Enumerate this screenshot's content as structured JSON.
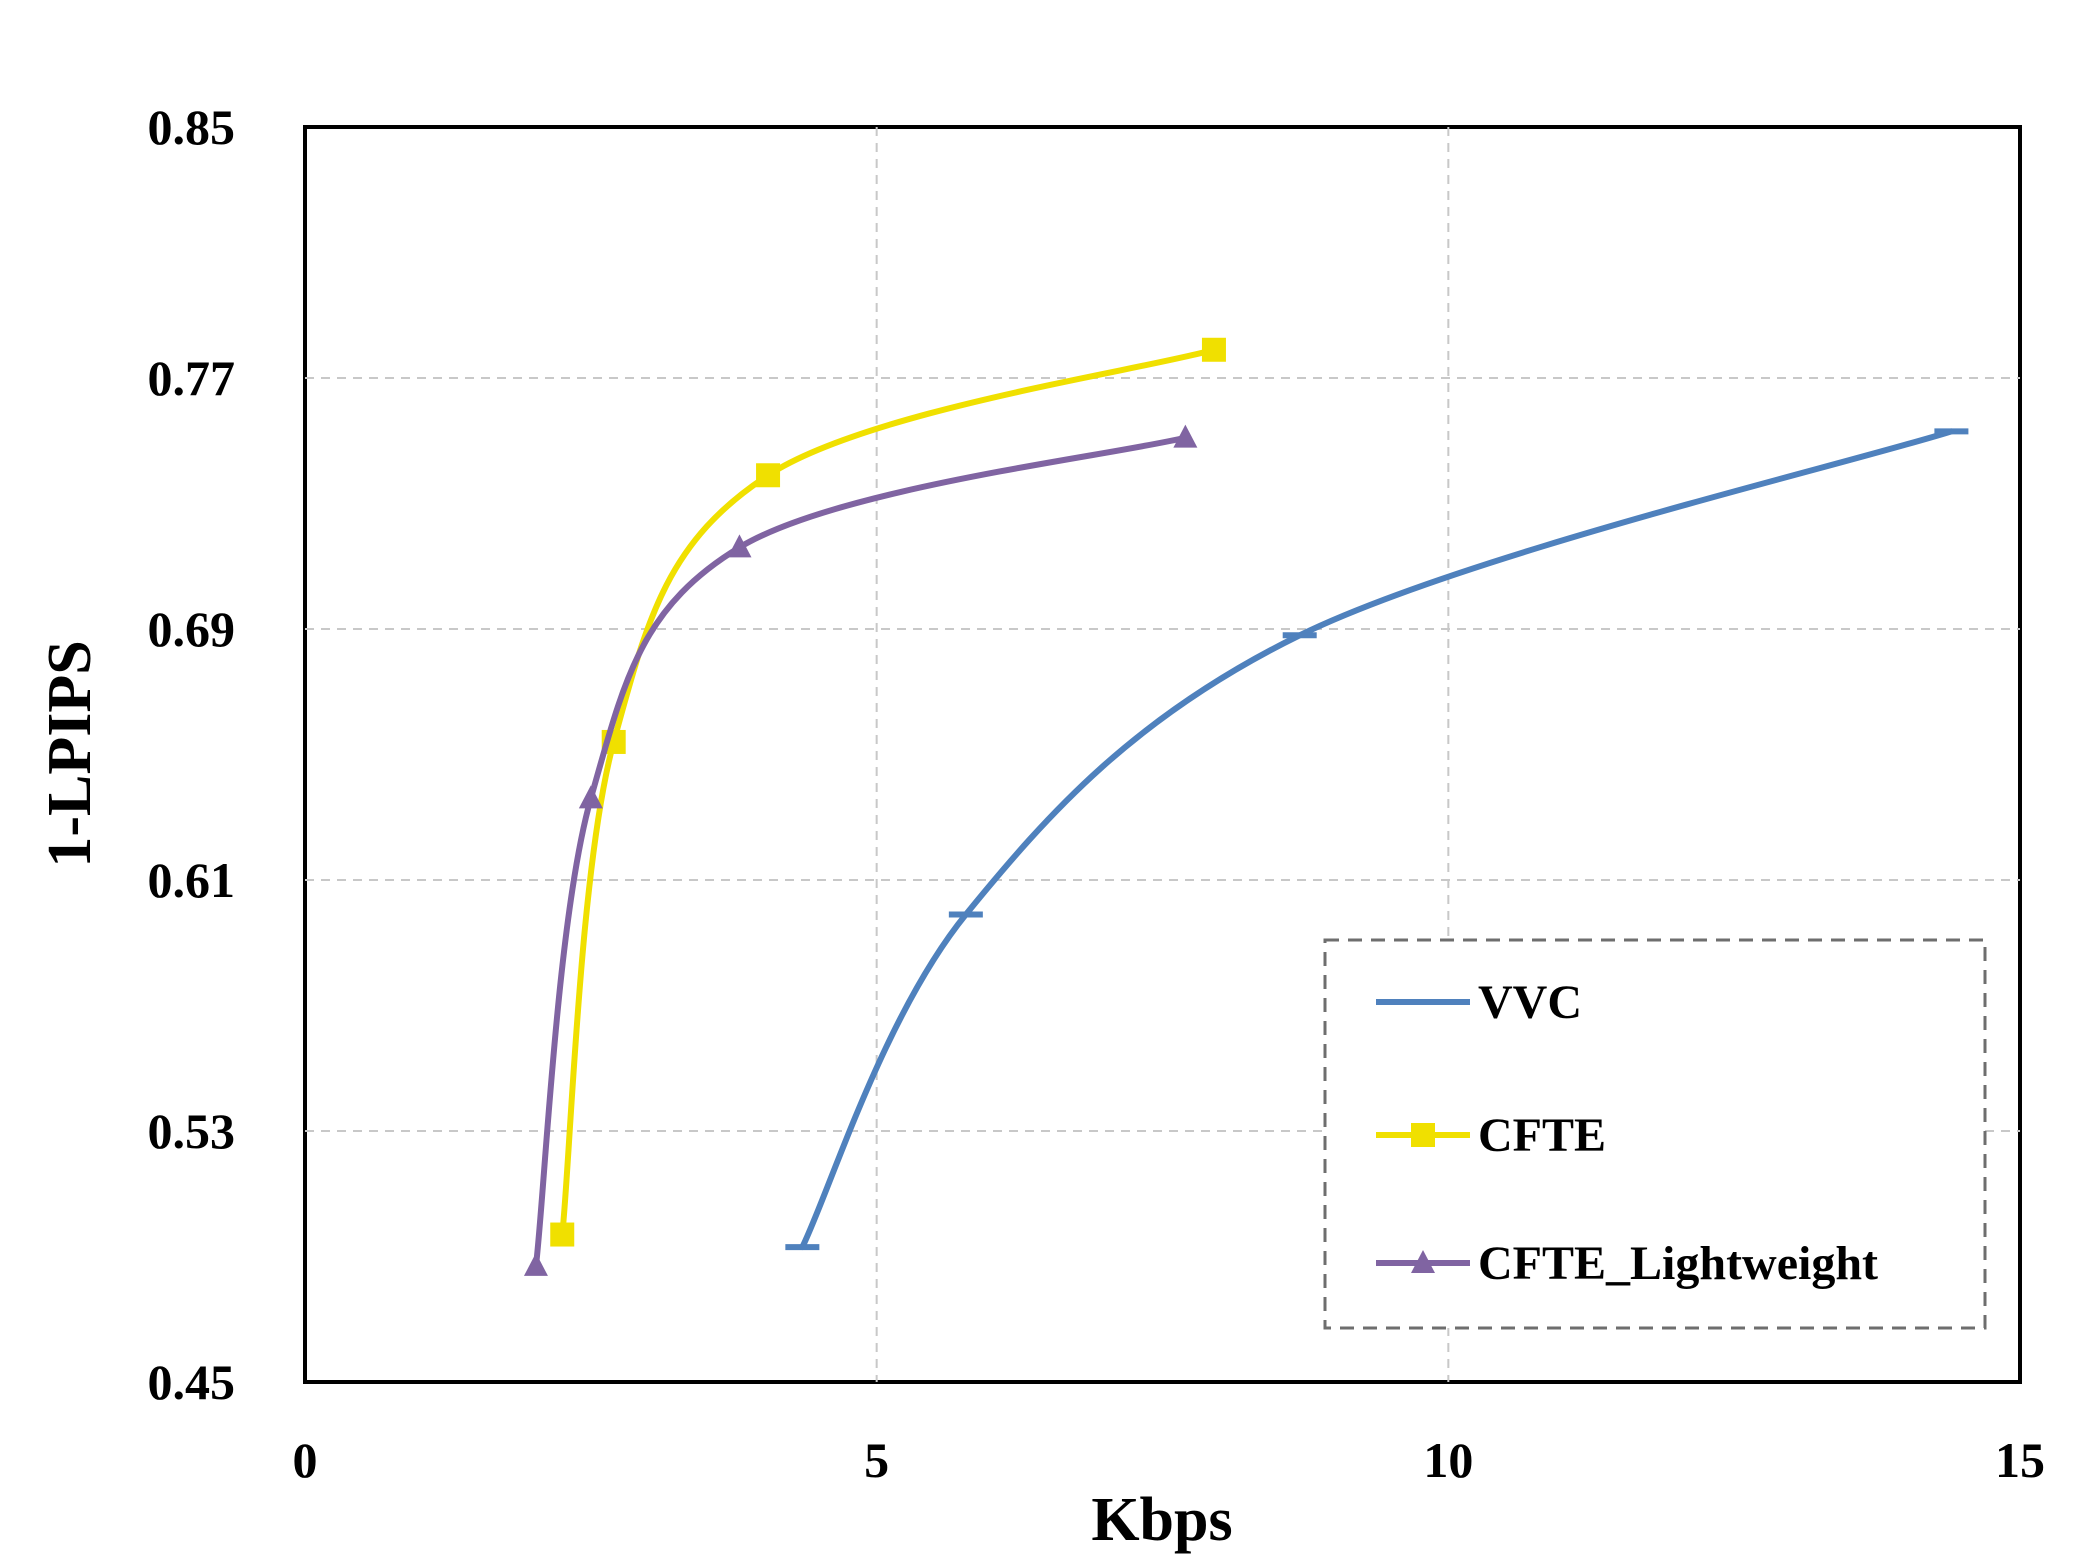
{
  "chart_data": {
    "type": "line",
    "title": "",
    "xlabel": "Kbps",
    "ylabel": "1-LPIPS",
    "xlim": [
      0,
      15
    ],
    "ylim": [
      0.45,
      0.85
    ],
    "xticks": [
      0,
      5,
      10,
      15
    ],
    "yticks": [
      0.45,
      0.53,
      0.61,
      0.69,
      0.77,
      0.85
    ],
    "xtick_labels": [
      "0",
      "5",
      "10",
      "15"
    ],
    "ytick_labels": [
      "0.45",
      "0.53",
      "0.61",
      "0.69",
      "0.77",
      "0.85"
    ],
    "grid": true,
    "legend_position": "bottom-right",
    "series": [
      {
        "name": "VVC",
        "color": "#4f81bd",
        "marker": "dash",
        "points": [
          [
            4.35,
            0.493
          ],
          [
            5.78,
            0.599
          ],
          [
            8.7,
            0.688
          ],
          [
            14.4,
            0.753
          ]
        ]
      },
      {
        "name": "CFTE",
        "color": "#f0e000",
        "marker": "square",
        "points": [
          [
            2.25,
            0.497
          ],
          [
            2.7,
            0.654
          ],
          [
            4.05,
            0.739
          ],
          [
            7.95,
            0.779
          ]
        ]
      },
      {
        "name": "CFTE_Lightweight",
        "color": "#8064a2",
        "marker": "triangle",
        "points": [
          [
            2.02,
            0.487
          ],
          [
            2.5,
            0.636
          ],
          [
            3.8,
            0.716
          ],
          [
            7.7,
            0.751
          ]
        ]
      }
    ]
  }
}
